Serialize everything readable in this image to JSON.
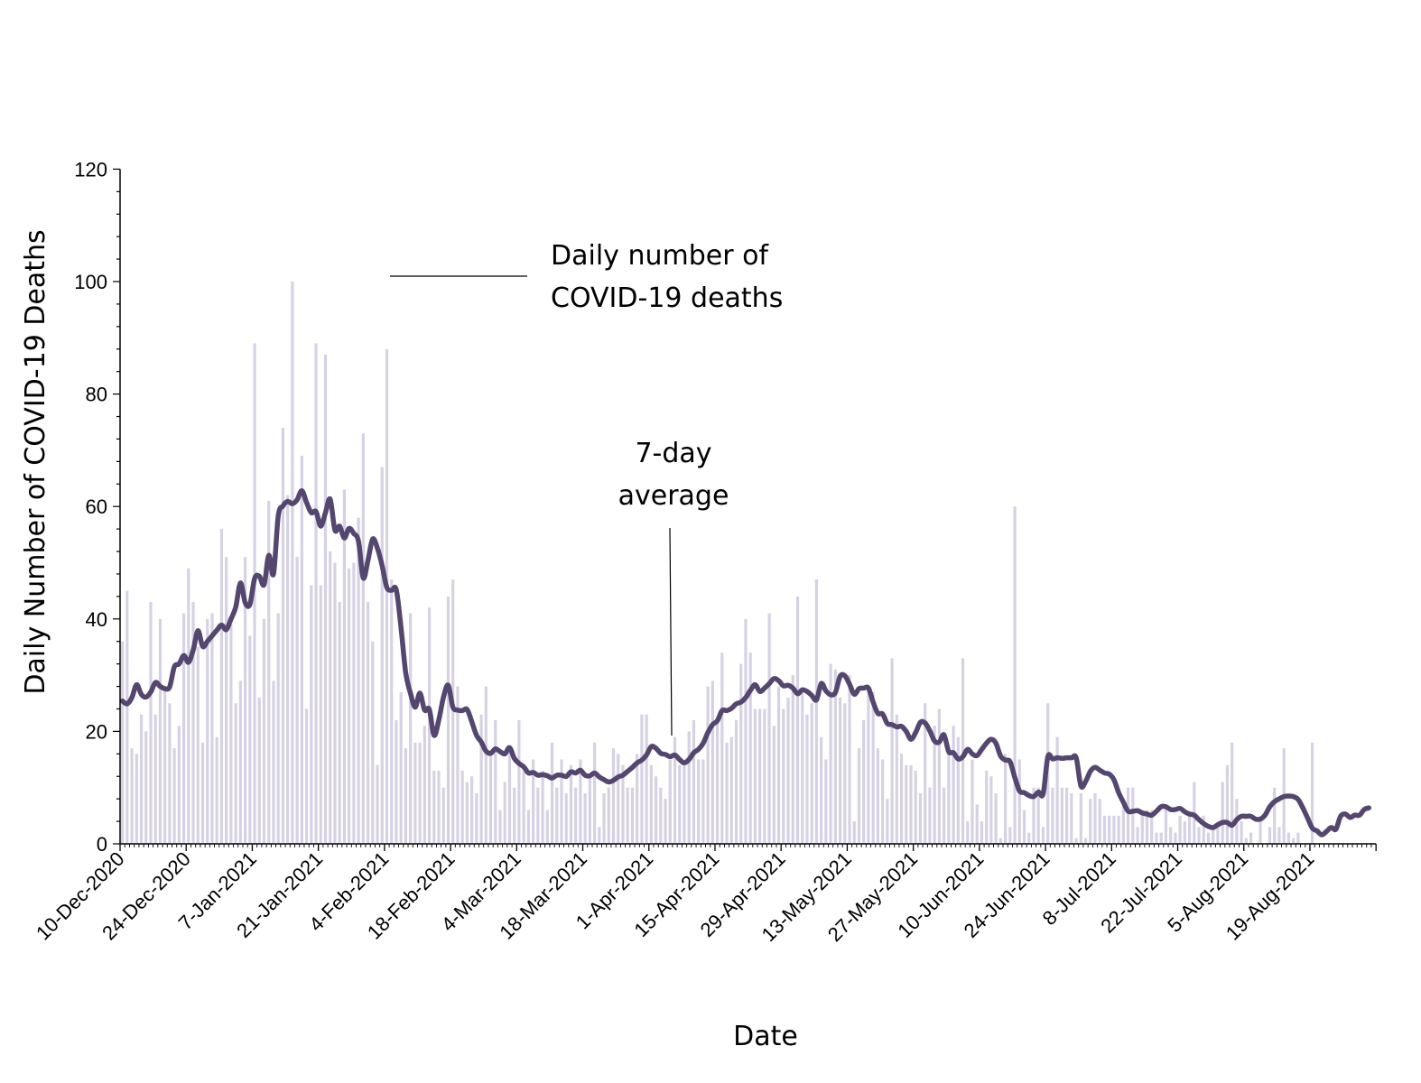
{
  "chart_data": {
    "type": "bar",
    "xlabel": "Date",
    "ylabel": "Daily Number of COVID-19 Deaths",
    "ylim": [
      0,
      120
    ],
    "y_ticks": [
      0,
      20,
      40,
      60,
      80,
      100,
      120
    ],
    "x_tick_labels": [
      "10-Dec-2020",
      "24-Dec-2020",
      "7-Jan-2021",
      "21-Jan-2021",
      "4-Feb-2021",
      "18-Feb-2021",
      "4-Mar-2021",
      "18-Mar-2021",
      "1-Apr-2021",
      "15-Apr-2021",
      "29-Apr-2021",
      "13-May-2021",
      "27-May-2021",
      "10-Jun-2021",
      "24-Jun-2021",
      "8-Jul-2021",
      "22-Jul-2021",
      "5-Aug-2021",
      "19-Aug-2021"
    ],
    "x_start": "10-Dec-2020",
    "grid": false,
    "annotations": [
      {
        "lines": [
          "Daily number of",
          "COVID-19 deaths"
        ]
      },
      {
        "lines": [
          "7-day",
          "average"
        ]
      }
    ],
    "colors": {
      "bars": "#d6d2e3",
      "average_line": "#54466e"
    },
    "series": [
      {
        "kind": "bar",
        "values": [
          36,
          45,
          17,
          16,
          23,
          20,
          43,
          23,
          40,
          28,
          25,
          17,
          21,
          41,
          49,
          43,
          35,
          18,
          40,
          41,
          19,
          56,
          51,
          39,
          25,
          29,
          51,
          37,
          89,
          26,
          40,
          61,
          29,
          41,
          74,
          62,
          100,
          51,
          69,
          24,
          46,
          89,
          46,
          87,
          52,
          50,
          43,
          63,
          49,
          50,
          58,
          73,
          43,
          36,
          14,
          67,
          88,
          47,
          22,
          27,
          17,
          41,
          18,
          18,
          21,
          42,
          13,
          13,
          10,
          44,
          47,
          28,
          13,
          11,
          12,
          9,
          23,
          28,
          16,
          22,
          6,
          11,
          17,
          10,
          22,
          13,
          6,
          15,
          10,
          13,
          6,
          18,
          10,
          15,
          9,
          14,
          10,
          15,
          9,
          12,
          18,
          3,
          9,
          10,
          17,
          16,
          14,
          10,
          10,
          16,
          23,
          23,
          14,
          12,
          10,
          8,
          15,
          19,
          14,
          15,
          20,
          22,
          15,
          15,
          28,
          29,
          22,
          34,
          18,
          19,
          22,
          32,
          40,
          34,
          24,
          24,
          24,
          41,
          21,
          28,
          24,
          26,
          30,
          44,
          27,
          23,
          25,
          47,
          19,
          15,
          32,
          31,
          26,
          25,
          30,
          4,
          17,
          22,
          27,
          27,
          17,
          15,
          8,
          33,
          23,
          16,
          14,
          14,
          13,
          9,
          25,
          10,
          21,
          24,
          10,
          16,
          21,
          19,
          33,
          4,
          15,
          7,
          4,
          13,
          12,
          9,
          1,
          16,
          3,
          60,
          15,
          6,
          2,
          10,
          10,
          3,
          25,
          10,
          19,
          10,
          10,
          9,
          1,
          9,
          1,
          8,
          9,
          8,
          5,
          5,
          5,
          5,
          7,
          10,
          10,
          3,
          6,
          6,
          6,
          2,
          2,
          7,
          3,
          2,
          5,
          4,
          5,
          11,
          3,
          5,
          2,
          3,
          3,
          11,
          14,
          18,
          8,
          4,
          1,
          2,
          0,
          4,
          0,
          3,
          10,
          3,
          17,
          2,
          1,
          2,
          0,
          0,
          18
        ]
      },
      {
        "kind": "line",
        "name": "7-day average",
        "values": [
          25.4,
          24.9,
          26,
          28.3,
          26.6,
          26.1,
          27,
          28.7,
          28,
          27.6,
          27.9,
          31.5,
          32,
          33.5,
          32.3,
          34.5,
          37.9,
          35.1,
          36,
          37,
          38,
          38.9,
          38.1,
          40,
          42.1,
          46.4,
          42.9,
          42.6,
          47.2,
          47.6,
          46.1,
          51.3,
          48,
          58.3,
          60.1,
          60.9,
          60.5,
          61.2,
          62.8,
          60.7,
          58.9,
          59.1,
          56.5,
          58.9,
          61.3,
          55.8,
          56.5,
          54.4,
          56.1,
          55.2,
          53.8,
          47.3,
          50.4,
          54.2,
          52.6,
          49.5,
          45.6,
          45.1,
          45.2,
          38.5,
          30.4,
          26.8,
          24.3,
          26.8,
          23.8,
          23.9,
          19.3,
          22,
          26.1,
          28.2,
          24.3,
          23.8,
          23.7,
          23.9,
          21.7,
          19.3,
          18.1,
          16.5,
          16.1,
          16.9,
          16.4,
          16,
          17.1,
          15.2,
          14.3,
          13.7,
          12.6,
          12.7,
          12.2,
          12.3,
          12.1,
          11.7,
          12.2,
          12.2,
          12,
          12.8,
          12.6,
          13.1,
          12.2,
          12.1,
          12.6,
          11.9,
          11.4,
          11,
          11.3,
          11.9,
          12.2,
          12.9,
          13.6,
          14.4,
          14.9,
          15.8,
          17.3,
          17,
          16.1,
          15.9,
          15.5,
          15.8,
          15,
          14.4,
          15,
          16.2,
          16.8,
          17.9,
          19.8,
          21.2,
          21.9,
          23.7,
          23.7,
          24.1,
          24.9,
          25.2,
          26,
          27.3,
          28.3,
          27.1,
          27.7,
          28.5,
          29.4,
          29,
          28.1,
          28.2,
          27.7,
          26.7,
          27.4,
          27.1,
          26.4,
          25.6,
          28.5,
          27.2,
          26.5,
          26.9,
          29.8,
          29.9,
          28.4,
          26.6,
          27.6,
          27.7,
          27.7,
          25.2,
          23.2,
          23.1,
          21.4,
          21.2,
          20.8,
          20.9,
          20,
          18.6,
          19.8,
          21.6,
          21.5,
          20.1,
          18.3,
          18.1,
          19.4,
          16.4,
          16.2,
          15.1,
          15.5,
          16.8,
          16,
          15.7,
          16.8,
          17.9,
          18.6,
          17.9,
          15.6,
          14.9,
          14.6,
          11.8,
          9.4,
          9.1,
          8.6,
          8.4,
          9.2,
          8.9,
          15.5,
          15.1,
          15.3,
          15.2,
          15.3,
          15.3,
          15.3,
          10.3,
          11.1,
          12.9,
          13.6,
          13.1,
          12.6,
          12.4,
          11.4,
          9.1,
          7.4,
          5.8,
          5.8,
          5.9,
          5.5,
          5.3,
          5.1,
          5.8,
          6.6,
          6.6,
          6.1,
          6.1,
          6.3,
          5.7,
          5.3,
          5.1,
          4.3,
          3.6,
          3.1,
          2.9,
          3.4,
          3.8,
          3.8,
          3.3,
          4.3,
          4.9,
          4.9,
          4.9,
          4.4,
          4.4,
          5.1,
          6.6,
          7.5,
          8,
          8.4,
          8.5,
          8.4,
          7.9,
          6.4,
          4.6,
          2.8,
          2.3,
          1.6,
          2.2,
          2.9,
          2.6,
          4.9,
          5.3,
          4.7,
          5.1,
          5.1,
          6.1,
          6.4
        ]
      }
    ]
  }
}
